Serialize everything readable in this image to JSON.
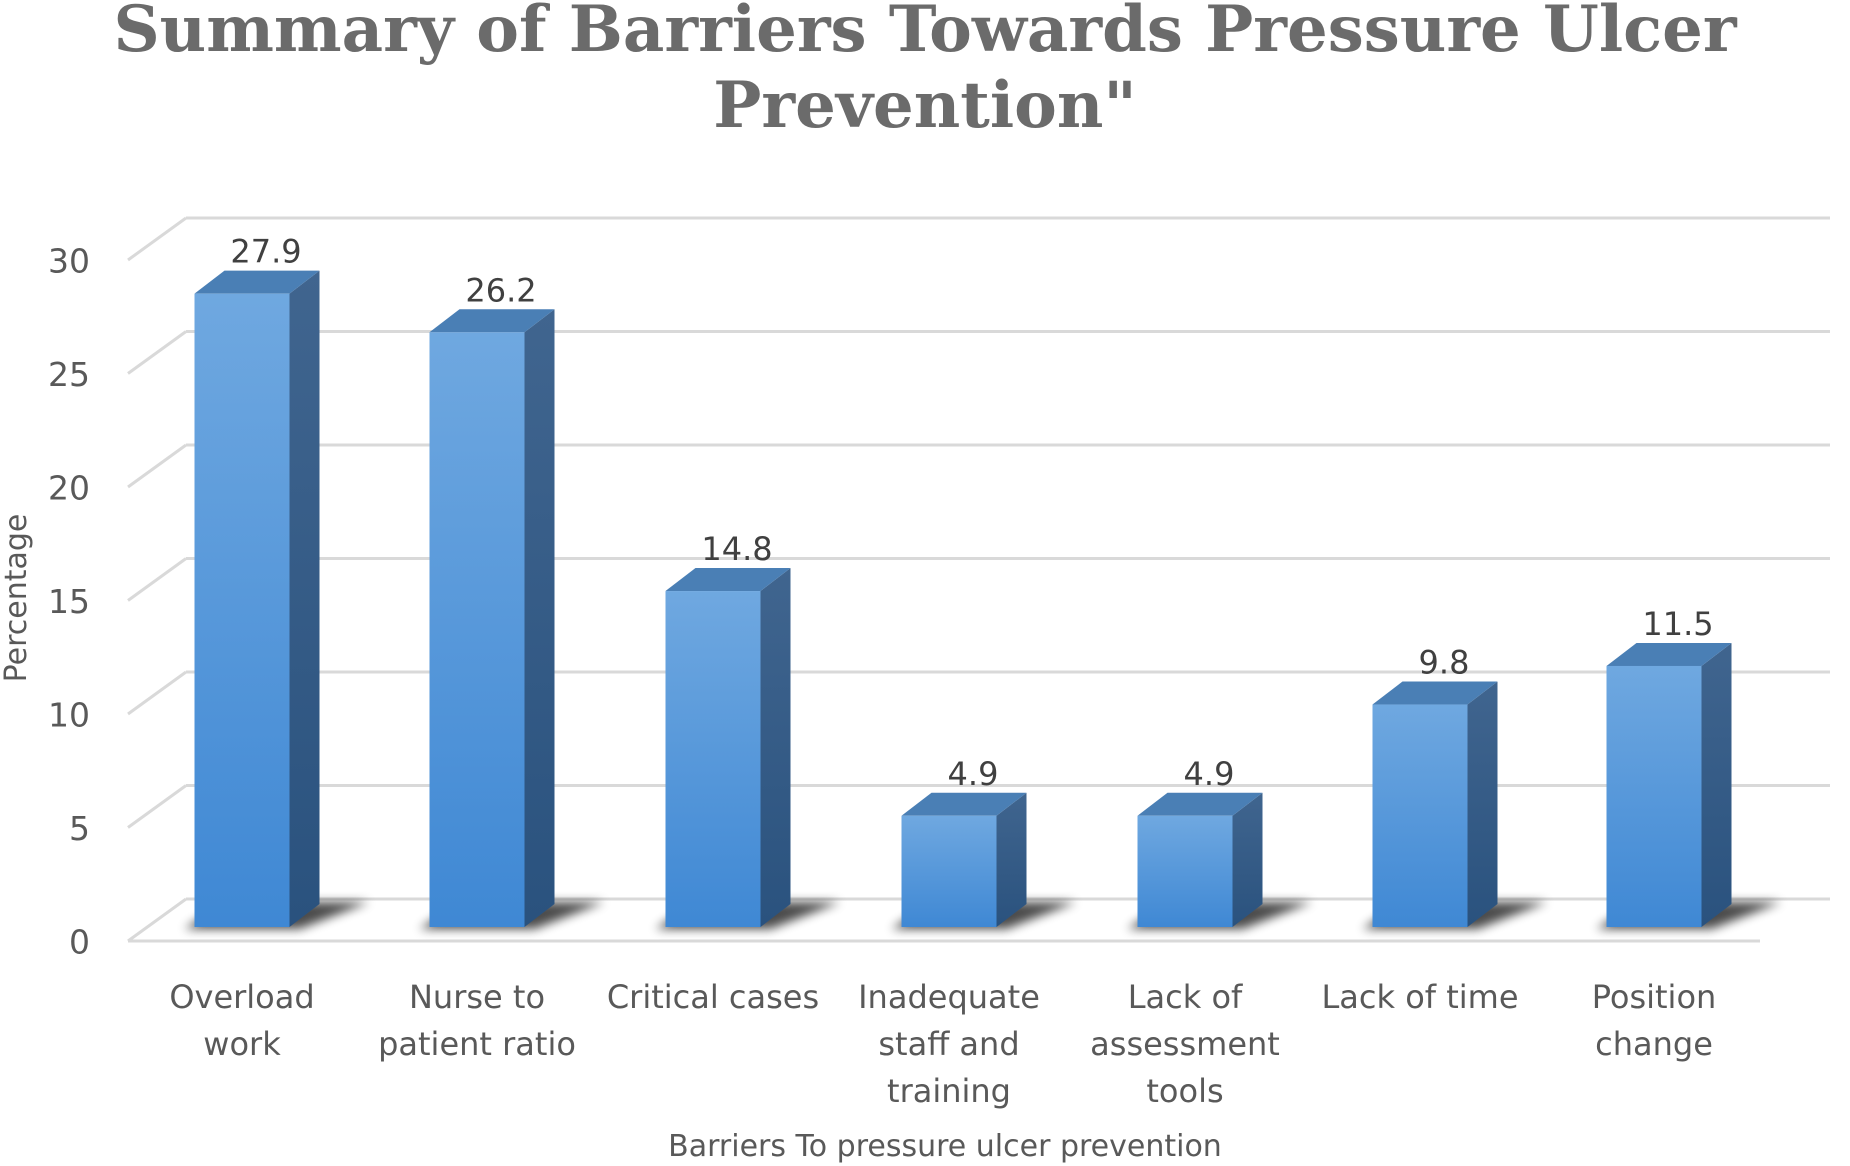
{
  "chart_data": {
    "type": "bar",
    "title_lines": [
      "Summary of Barriers Towards Pressure Ulcer",
      "Prevention\""
    ],
    "categories": [
      [
        "Overload",
        "work"
      ],
      [
        "Nurse to",
        "patient ratio"
      ],
      [
        "Critical cases"
      ],
      [
        "Inadequate",
        "staff and",
        "training"
      ],
      [
        "Lack of",
        "assessment",
        "tools"
      ],
      [
        "Lack of time"
      ],
      [
        "Position",
        "change"
      ]
    ],
    "values": [
      27.9,
      26.2,
      14.8,
      4.9,
      4.9,
      9.8,
      11.5
    ],
    "value_labels": [
      "27.9",
      "26.2",
      "14.8",
      "4.9",
      "4.9",
      "9.8",
      "11.5"
    ],
    "yticks": [
      "0",
      "5",
      "10",
      "15",
      "20",
      "25",
      "30"
    ],
    "ylim": [
      0,
      30
    ],
    "xlabel": "Barriers To pressure ulcer prevention",
    "ylabel": "Percentage",
    "colors": {
      "front": "#5b9bd5",
      "side": "#2e5f8d",
      "top": "#4a7fb5",
      "grid": "#d9d9d9",
      "shadow": "#000000"
    }
  }
}
